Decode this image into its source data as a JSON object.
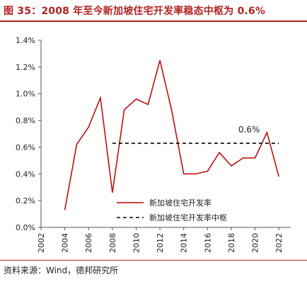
{
  "title": "图 35：2008 年至今新加坡住宅开发率稳态中枢为 0.6%",
  "source": "资料来源：Wind，德邦研究所",
  "chart_data": {
    "type": "line",
    "title": "图 35：2008 年至今新加坡住宅开发率稳态中枢为 0.6%",
    "x": [
      2004,
      2005,
      2006,
      2007,
      2008,
      2009,
      2010,
      2011,
      2012,
      2013,
      2014,
      2015,
      2016,
      2017,
      2018,
      2019,
      2020,
      2021,
      2022
    ],
    "xticks": [
      "2002",
      "2004",
      "2006",
      "2008",
      "2010",
      "2012",
      "2014",
      "2016",
      "2018",
      "2020",
      "2022"
    ],
    "xlim": [
      2002,
      2023
    ],
    "ylim": [
      0,
      1.4
    ],
    "yticks": [
      "0.0%",
      "0.2%",
      "0.4%",
      "0.6%",
      "0.8%",
      "1.0%",
      "1.2%",
      "1.4%"
    ],
    "series": [
      {
        "name": "新加坡住宅开发率",
        "color": "#c00000",
        "style": "solid",
        "values": [
          0.13,
          0.62,
          0.75,
          0.97,
          0.26,
          0.88,
          0.96,
          0.92,
          1.25,
          0.87,
          0.4,
          0.4,
          0.42,
          0.56,
          0.46,
          0.52,
          0.52,
          0.71,
          0.38
        ]
      },
      {
        "name": "新加坡住宅开发率中枢",
        "color": "#000000",
        "style": "dashed",
        "x": [
          2008,
          2022
        ],
        "values": [
          0.63,
          0.63
        ]
      }
    ],
    "annotations": [
      {
        "text": "0.6%",
        "x": 2019.5,
        "y": 0.71
      }
    ],
    "legend": "bottom-right",
    "grid": false
  }
}
